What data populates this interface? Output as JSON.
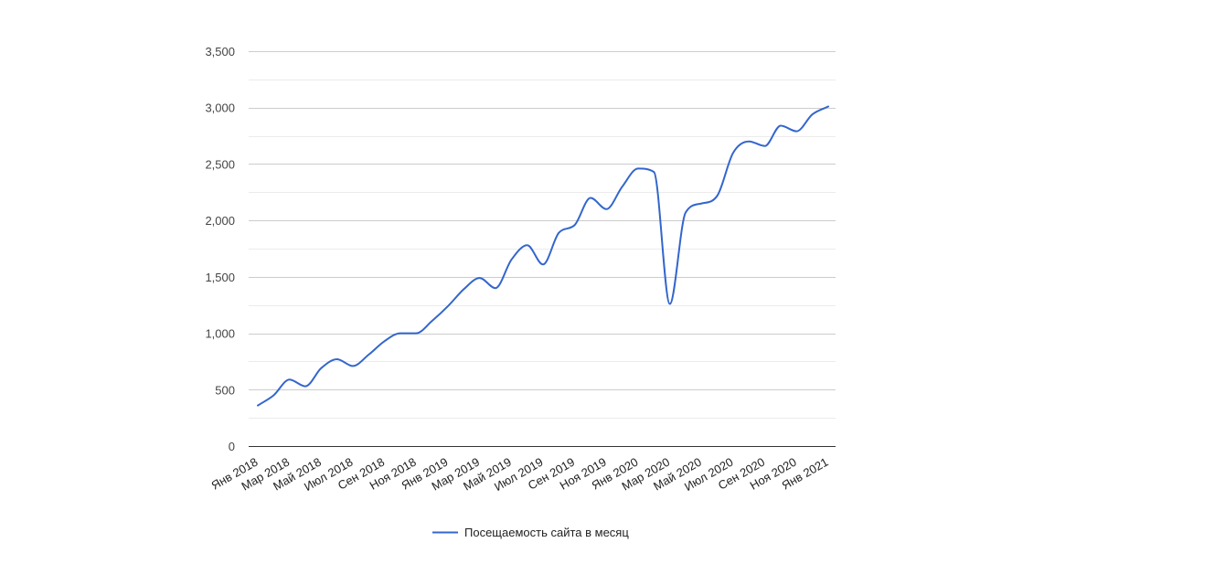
{
  "chart_data": {
    "type": "line",
    "title": "",
    "xlabel": "",
    "ylabel": "",
    "ylim": [
      0,
      3500
    ],
    "y_ticks": [
      0,
      500,
      1000,
      1500,
      2000,
      2500,
      3000,
      3500
    ],
    "y_tick_labels": [
      "0",
      "500",
      "1,000",
      "1,500",
      "2,000",
      "2,500",
      "3,000",
      "3,500"
    ],
    "x_tick_labels": [
      "Янв 2018",
      "Мар 2018",
      "Май 2018",
      "Июл 2018",
      "Сен 2018",
      "Ноя 2018",
      "Янв 2019",
      "Мар 2019",
      "Май 2019",
      "Июл 2019",
      "Сен 2019",
      "Ноя 2019",
      "Янв 2020",
      "Мар 2020",
      "Май 2020",
      "Июл 2020",
      "Сен 2020",
      "Ноя 2020",
      "Янв 2021"
    ],
    "x": [
      "Янв 2018",
      "Фев 2018",
      "Мар 2018",
      "Апр 2018",
      "Май 2018",
      "Июн 2018",
      "Июл 2018",
      "Авг 2018",
      "Сен 2018",
      "Окт 2018",
      "Ноя 2018",
      "Дек 2018",
      "Янв 2019",
      "Фев 2019",
      "Мар 2019",
      "Апр 2019",
      "Май 2019",
      "Июн 2019",
      "Июл 2019",
      "Авг 2019",
      "Сен 2019",
      "Окт 2019",
      "Ноя 2019",
      "Дек 2019",
      "Янв 2020",
      "Фев 2020",
      "Мар 2020",
      "Апр 2020",
      "Май 2020",
      "Июн 2020",
      "Июл 2020",
      "Авг 2020",
      "Сен 2020",
      "Окт 2020",
      "Ноя 2020",
      "Дек 2020",
      "Янв 2021"
    ],
    "series": [
      {
        "name": "Посещаемость сайта в месяц",
        "color": "#3366cc",
        "values": [
          360,
          450,
          590,
          530,
          690,
          770,
          710,
          810,
          930,
          1000,
          1000,
          1110,
          1240,
          1390,
          1490,
          1400,
          1650,
          1780,
          1610,
          1890,
          1960,
          2200,
          2100,
          2300,
          2460,
          2430,
          1260,
          2070,
          2150,
          2220,
          2600,
          2700,
          2660,
          2840,
          2790,
          2940,
          3010
        ]
      }
    ],
    "grid": true,
    "legend_position": "bottom"
  }
}
